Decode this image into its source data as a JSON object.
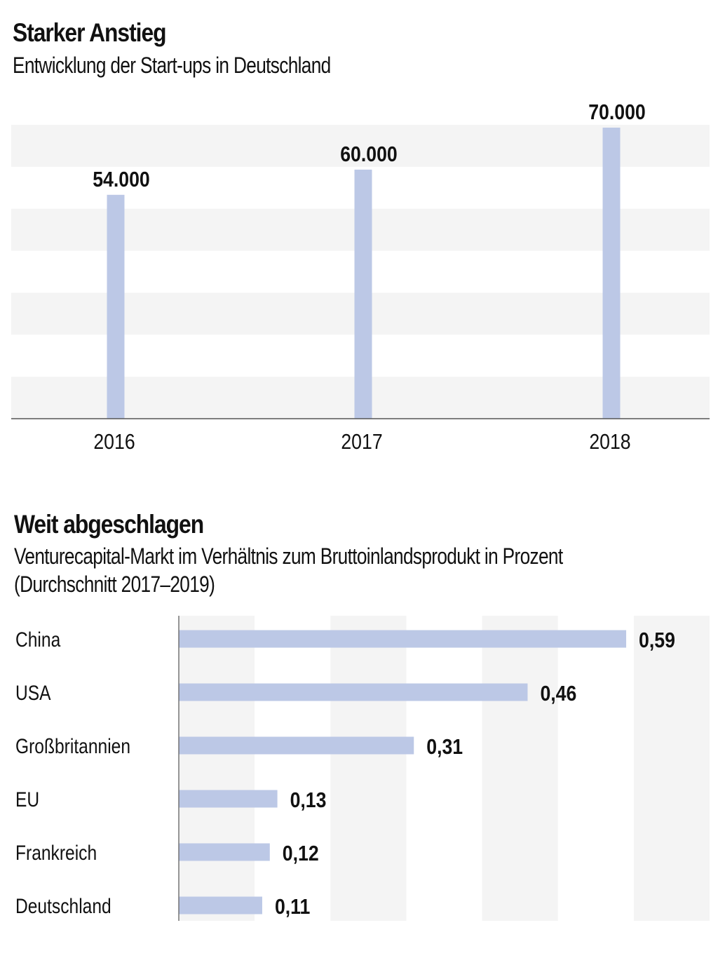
{
  "charts": [
    {
      "title": "Starker Anstieg",
      "subtitle": "Entwicklung der Start-ups in Deutschland"
    },
    {
      "title": "Weit abgeschlagen",
      "subtitle_line1": "Venturecapital-Markt im Verhältnis zum Bruttoinlandsprodukt in Prozent",
      "subtitle_line2": "(Durchschnitt 2017–2019)"
    }
  ],
  "colors": {
    "bar": "#bcc8e6",
    "band": "#f4f4f4",
    "axis": "#555555",
    "text": "#111111"
  },
  "chart_data": [
    {
      "type": "bar",
      "orientation": "vertical",
      "title": "Starker Anstieg",
      "subtitle": "Entwicklung der Start-ups in Deutschland",
      "categories": [
        "2016",
        "2017",
        "2018"
      ],
      "values": [
        54000,
        60000,
        70000
      ],
      "value_labels": [
        "54.000",
        "60.000",
        "70.000"
      ],
      "xlabel": "",
      "ylabel": "",
      "ylim": [
        0,
        70000
      ],
      "grid": "alternating horizontal bands every 10000",
      "legend": "none"
    },
    {
      "type": "bar",
      "orientation": "horizontal",
      "title": "Weit abgeschlagen",
      "subtitle": "Venturecapital-Markt im Verhältnis zum Bruttoinlandsprodukt in Prozent (Durchschnitt 2017–2019)",
      "categories": [
        "China",
        "USA",
        "Großbritannien",
        "EU",
        "Frankreich",
        "Deutschland"
      ],
      "values": [
        0.59,
        0.46,
        0.31,
        0.13,
        0.12,
        0.11
      ],
      "value_labels": [
        "0,59",
        "0,46",
        "0,31",
        "0,13",
        "0,12",
        "0,11"
      ],
      "xlabel": "",
      "ylabel": "",
      "xlim": [
        0,
        0.7
      ],
      "grid": "alternating vertical bands every 0.1",
      "legend": "none"
    }
  ]
}
